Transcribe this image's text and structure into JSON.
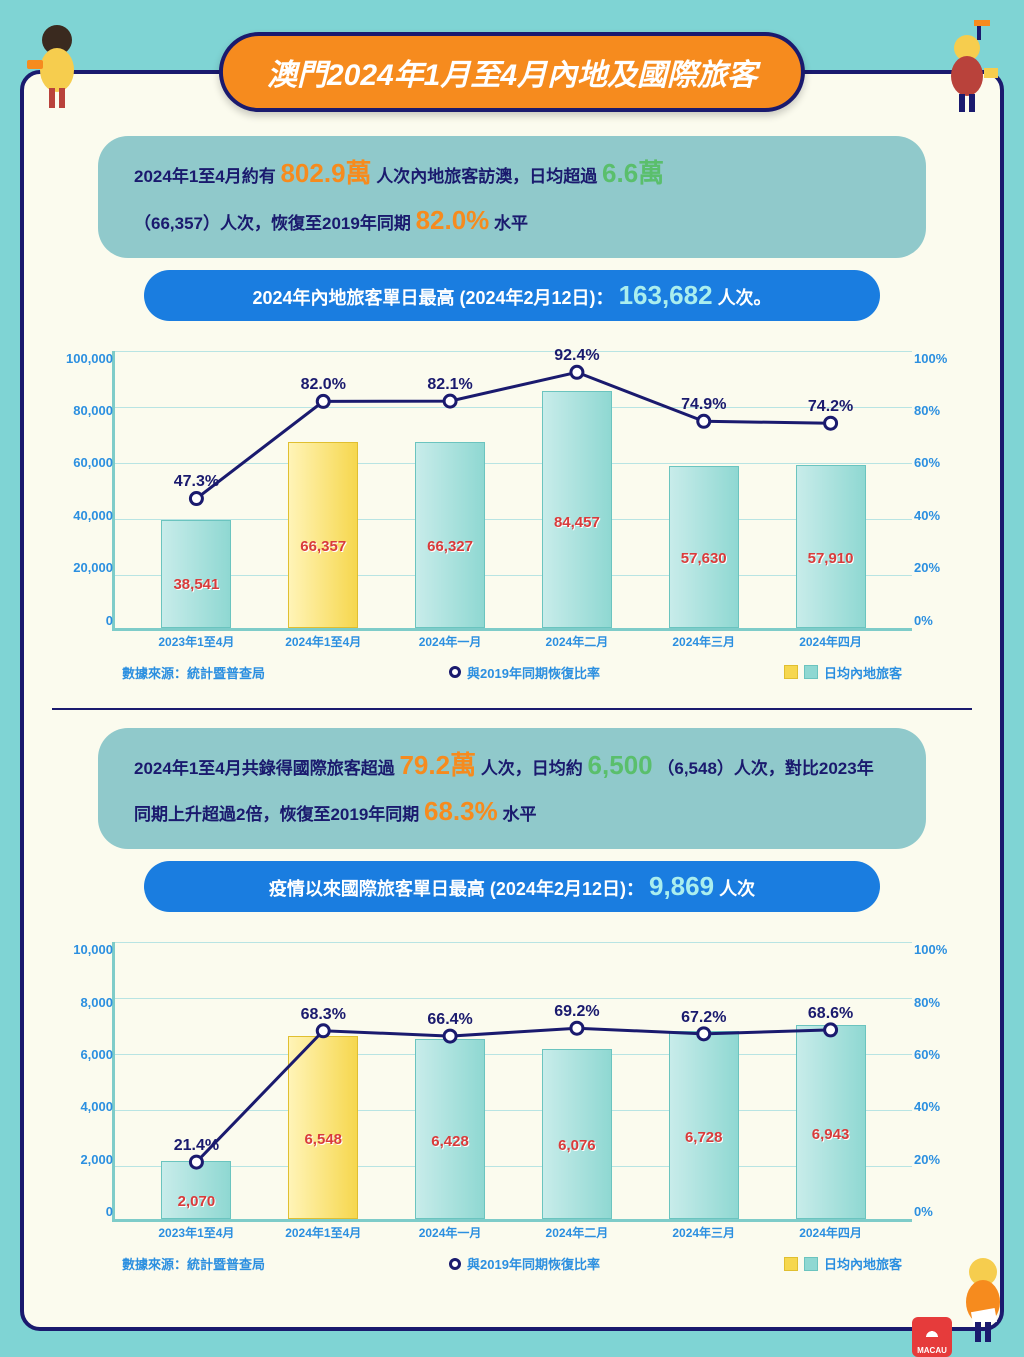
{
  "title": "澳門2024年1月至4月內地及國際旅客",
  "colors": {
    "bg": "#7fd4d4",
    "panel": "#fbfbee",
    "border": "#1a1a6e",
    "orange": "#f68b1e",
    "blue": "#1a7de0",
    "navy": "#1a1a6e",
    "teal": "#90c9cb",
    "axis": "#2b8fe0",
    "value_red": "#d93b3b",
    "bar_normal_from": "#c8ecea",
    "bar_normal_to": "#8fd8d2",
    "bar_hl_from": "#fff4b7",
    "bar_hl_to": "#f6d74e",
    "line": "#1a1a6e"
  },
  "section1": {
    "info": {
      "p1": "2024年1至4月約有",
      "h1": "802.9萬",
      "p2": "人次內地旅客訪澳，日均超過",
      "h2": "6.6萬",
      "p3": "（66,357）人次，恢復至2019年同期",
      "h3": "82.0%",
      "p4": "水平"
    },
    "blue": {
      "pre": "2024年內地旅客單日最高 (2024年2月12日)：",
      "big": "163,682",
      "suf": "人次。"
    },
    "chart": {
      "y_left_max": 100000,
      "y_left_ticks": [
        "100,000",
        "80,000",
        "60,000",
        "40,000",
        "20,000",
        "0"
      ],
      "y_right_max": 100,
      "y_right_ticks": [
        "100%",
        "80%",
        "60%",
        "40%",
        "20%",
        "0%"
      ],
      "categories": [
        "2023年1至4月",
        "2024年1至4月",
        "2024年一月",
        "2024年二月",
        "2024年三月",
        "2024年四月"
      ],
      "bars": [
        38541,
        66357,
        66327,
        84457,
        57630,
        57910
      ],
      "bar_labels": [
        "38,541",
        "66,357",
        "66,327",
        "84,457",
        "57,630",
        "57,910"
      ],
      "highlight_index": 1,
      "line_pct": [
        47.3,
        82.0,
        82.1,
        92.4,
        74.9,
        74.2
      ],
      "line_labels": [
        "47.3%",
        "82.0%",
        "82.1%",
        "92.4%",
        "74.9%",
        "74.2%"
      ]
    }
  },
  "section2": {
    "info": {
      "p1": "2024年1至4月共錄得國際旅客超過",
      "h1": "79.2萬",
      "p2": "人次，日均約",
      "h2": "6,500",
      "p3": "（6,548）人次，對比2023年同期上升超過2倍，恢復至2019年同期",
      "h3": "68.3%",
      "p4": "水平"
    },
    "blue": {
      "pre": "疫情以來國際旅客單日最高 (2024年2月12日)：",
      "big": "9,869",
      "suf": "人次"
    },
    "chart": {
      "y_left_max": 10000,
      "y_left_ticks": [
        "10,000",
        "8,000",
        "6,000",
        "4,000",
        "2,000",
        "0"
      ],
      "y_right_max": 100,
      "y_right_ticks": [
        "100%",
        "80%",
        "60%",
        "40%",
        "20%",
        "0%"
      ],
      "categories": [
        "2023年1至4月",
        "2024年1至4月",
        "2024年一月",
        "2024年二月",
        "2024年三月",
        "2024年四月"
      ],
      "bars": [
        2070,
        6548,
        6428,
        6076,
        6728,
        6943
      ],
      "bar_labels": [
        "2,070",
        "6,548",
        "6,428",
        "6,076",
        "6,728",
        "6,943"
      ],
      "highlight_index": 1,
      "line_pct": [
        21.4,
        68.3,
        66.4,
        69.2,
        67.2,
        68.6
      ],
      "line_labels": [
        "21.4%",
        "68.3%",
        "66.4%",
        "69.2%",
        "67.2%",
        "68.6%"
      ]
    }
  },
  "legend": {
    "source": "數據來源：統計暨普查局",
    "line": "與2019年同期恢復比率",
    "bar": "日均內地旅客"
  },
  "logo": "MACAU"
}
